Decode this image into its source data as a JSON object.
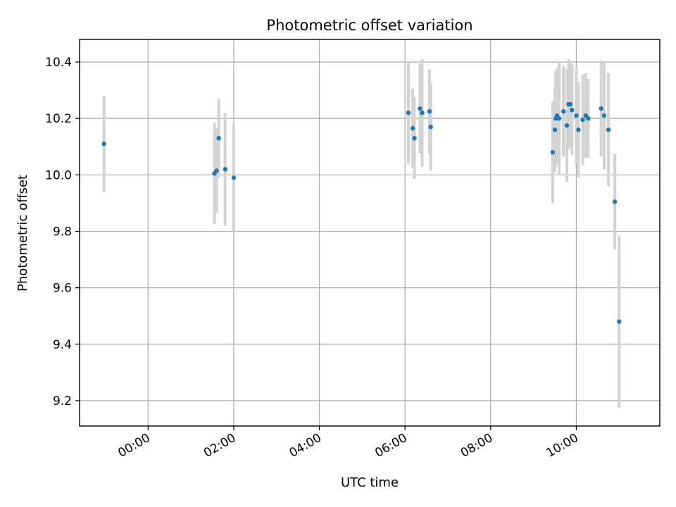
{
  "chart_data": {
    "type": "scatter",
    "title": "Photometric offset variation",
    "xlabel": "UTC time",
    "ylabel": "Photometric offset",
    "x_unit": "hours",
    "xlim": [
      -1.6,
      11.95
    ],
    "ylim": [
      9.11,
      10.48
    ],
    "x_ticks": [
      {
        "value": 0,
        "label": "00:00"
      },
      {
        "value": 2,
        "label": "02:00"
      },
      {
        "value": 4,
        "label": "04:00"
      },
      {
        "value": 6,
        "label": "06:00"
      },
      {
        "value": 8,
        "label": "08:00"
      },
      {
        "value": 10,
        "label": "10:00"
      }
    ],
    "y_ticks": [
      {
        "value": 9.2,
        "label": "9.2"
      },
      {
        "value": 9.4,
        "label": "9.4"
      },
      {
        "value": 9.6,
        "label": "9.6"
      },
      {
        "value": 9.8,
        "label": "9.8"
      },
      {
        "value": 10.0,
        "label": "10.0"
      },
      {
        "value": 10.2,
        "label": "10.2"
      },
      {
        "value": 10.4,
        "label": "10.4"
      }
    ],
    "grid": true,
    "colors": {
      "points": "#1f77b4",
      "errorbars": "#d3d3d3"
    },
    "points": [
      {
        "x": -1.03,
        "y": 10.11,
        "err": 0.17
      },
      {
        "x": 1.55,
        "y": 10.005,
        "err": 0.18
      },
      {
        "x": 1.6,
        "y": 10.015,
        "err": 0.15
      },
      {
        "x": 1.65,
        "y": 10.13,
        "err": 0.14
      },
      {
        "x": 1.8,
        "y": 10.02,
        "err": 0.2
      },
      {
        "x": 2.0,
        "y": 9.99,
        "err": 0.19
      },
      {
        "x": 6.08,
        "y": 10.22,
        "err": 0.18
      },
      {
        "x": 6.18,
        "y": 10.165,
        "err": 0.14
      },
      {
        "x": 6.22,
        "y": 10.13,
        "err": 0.145
      },
      {
        "x": 6.35,
        "y": 10.235,
        "err": 0.16
      },
      {
        "x": 6.4,
        "y": 10.22,
        "err": 0.19
      },
      {
        "x": 6.57,
        "y": 10.225,
        "err": 0.15
      },
      {
        "x": 6.6,
        "y": 10.17,
        "err": 0.155
      },
      {
        "x": 9.45,
        "y": 10.08,
        "err": 0.18
      },
      {
        "x": 9.5,
        "y": 10.16,
        "err": 0.15
      },
      {
        "x": 9.52,
        "y": 10.2,
        "err": 0.17
      },
      {
        "x": 9.55,
        "y": 10.21,
        "err": 0.17
      },
      {
        "x": 9.6,
        "y": 10.2,
        "err": 0.2
      },
      {
        "x": 9.7,
        "y": 10.225,
        "err": 0.16
      },
      {
        "x": 9.78,
        "y": 10.175,
        "err": 0.2
      },
      {
        "x": 9.82,
        "y": 10.25,
        "err": 0.16
      },
      {
        "x": 9.86,
        "y": 10.25,
        "err": 0.15
      },
      {
        "x": 9.9,
        "y": 10.23,
        "err": 0.16
      },
      {
        "x": 10.0,
        "y": 10.21,
        "err": 0.17
      },
      {
        "x": 10.05,
        "y": 10.16,
        "err": 0.17
      },
      {
        "x": 10.15,
        "y": 10.195,
        "err": 0.16
      },
      {
        "x": 10.22,
        "y": 10.21,
        "err": 0.15
      },
      {
        "x": 10.28,
        "y": 10.2,
        "err": 0.14
      },
      {
        "x": 10.58,
        "y": 10.235,
        "err": 0.17
      },
      {
        "x": 10.65,
        "y": 10.21,
        "err": 0.19
      },
      {
        "x": 10.75,
        "y": 10.16,
        "err": 0.2
      },
      {
        "x": 10.9,
        "y": 9.905,
        "err": 0.17
      },
      {
        "x": 11.0,
        "y": 9.48,
        "err": 0.305
      }
    ]
  }
}
